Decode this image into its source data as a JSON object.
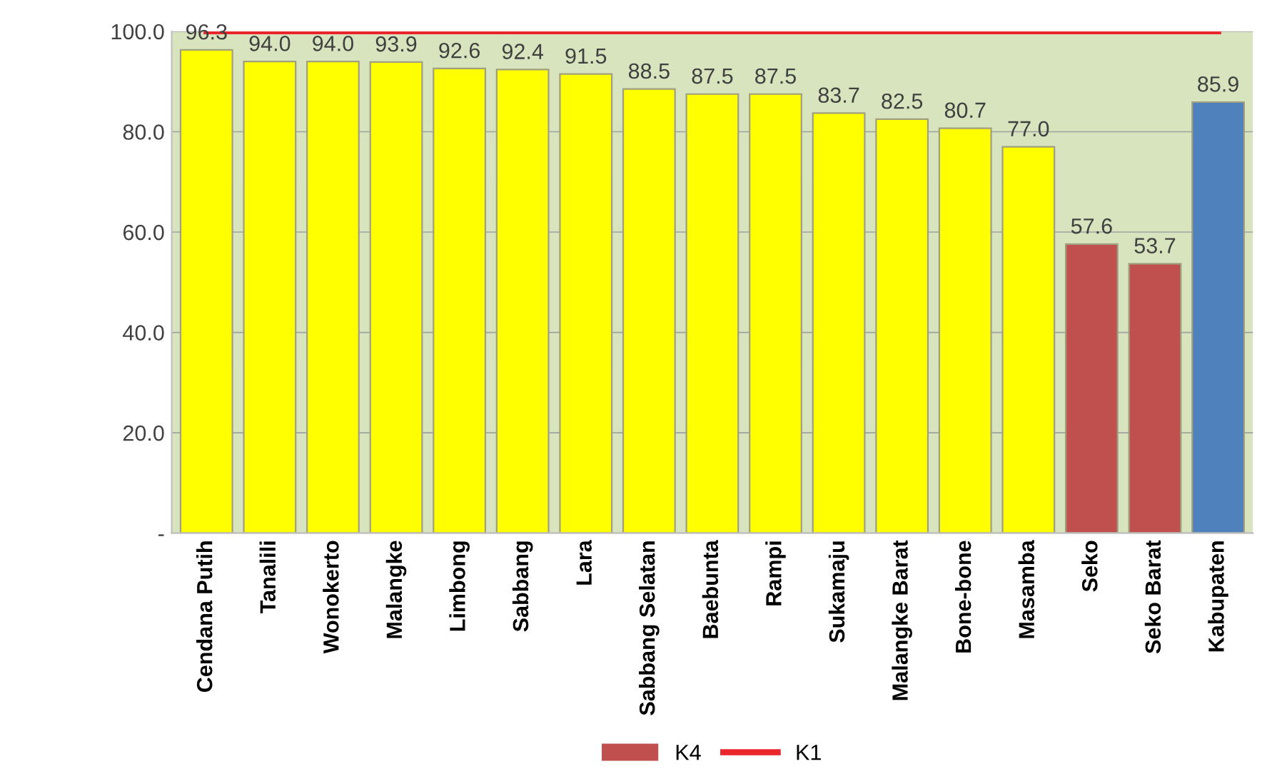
{
  "chart_data": {
    "type": "bar",
    "categories": [
      "Cendana Putih",
      "Tanalili",
      "Wonokerto",
      "Malangke",
      "Limbong",
      "Sabbang",
      "Lara",
      "Sabbang Selatan",
      "Baebunta",
      "Rampi",
      "Sukamaju",
      "Malangke Barat",
      "Bone-bone",
      "Masamba",
      "Seko",
      "Seko Barat",
      "Kabupaten"
    ],
    "series": [
      {
        "name": "K4",
        "color": "#c0504d",
        "colors": [
          "#ffff00",
          "#ffff00",
          "#ffff00",
          "#ffff00",
          "#ffff00",
          "#ffff00",
          "#ffff00",
          "#ffff00",
          "#ffff00",
          "#ffff00",
          "#ffff00",
          "#ffff00",
          "#ffff00",
          "#ffff00",
          "#c0504d",
          "#c0504d",
          "#4f81bd"
        ],
        "values": [
          96.3,
          94.0,
          94.0,
          93.9,
          92.6,
          92.4,
          91.5,
          88.5,
          87.5,
          87.5,
          83.7,
          82.5,
          80.7,
          77.0,
          57.6,
          53.7,
          85.9
        ],
        "value_labels": [
          "96.3",
          "94.0",
          "94.0",
          "93.9",
          "92.6",
          "92.4",
          "91.5",
          "88.5",
          "87.5",
          "87.5",
          "83.7",
          "82.5",
          "80.7",
          "77.0",
          "57.6",
          "53.7",
          "85.9"
        ]
      },
      {
        "name": "K1",
        "type": "line",
        "color": "#e8262b",
        "values": [
          100,
          100,
          100,
          100,
          100,
          100,
          100,
          100,
          100,
          100,
          100,
          100,
          100,
          100,
          100,
          100,
          100
        ]
      }
    ],
    "ylim": [
      0,
      100
    ],
    "yticks": [
      {
        "value": 0,
        "label": "-"
      },
      {
        "value": 20,
        "label": "20.0"
      },
      {
        "value": 40,
        "label": "40.0"
      },
      {
        "value": 60,
        "label": "60.0"
      },
      {
        "value": 80,
        "label": "80.0"
      },
      {
        "value": 100,
        "label": "100.0"
      }
    ],
    "bands": [
      {
        "axis": "y",
        "from": 0,
        "to": 100,
        "color": "#d7e4bd"
      }
    ],
    "grid": "y",
    "legend": "bottom",
    "marker": "none",
    "line_style": "solid"
  }
}
